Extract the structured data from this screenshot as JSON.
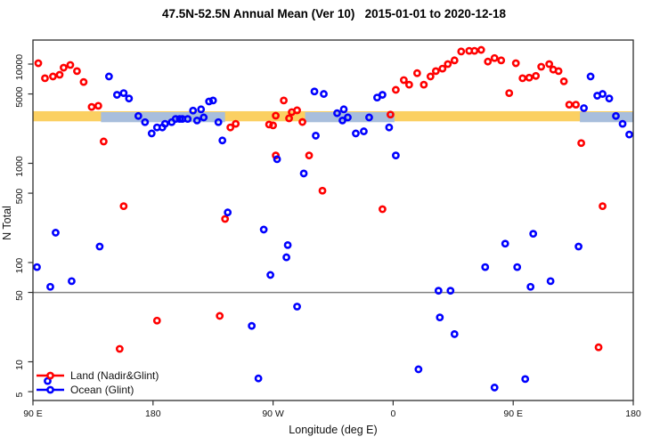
{
  "figure": {
    "background": "#ffffff"
  },
  "chart_data": {
    "type": "scatter",
    "title": "47.5N-52.5N Annual Mean (Ver 10)   2015-01-01 to 2020-12-18",
    "xlabel": "Longitude (deg E)",
    "ylabel": "N Total",
    "x_axis": {
      "range": [
        90,
        540
      ],
      "ticks": [
        90,
        180,
        270,
        360,
        450,
        540
      ],
      "tick_labels": [
        "90 E",
        "180",
        "90 W",
        "0",
        "90 E",
        "180"
      ]
    },
    "y_axis": {
      "scale": "log",
      "range": [
        4.2,
        17500
      ],
      "ticks": [
        5,
        10,
        50,
        100,
        500,
        1000,
        5000,
        10000
      ],
      "tick_labels": [
        "5",
        "10",
        "50",
        "100",
        "500",
        "1000",
        "5000",
        "10000"
      ]
    },
    "grid": "off",
    "reference_line": {
      "y": 50,
      "color": "#808080"
    },
    "bands": {
      "value_range": [
        2650,
        3350
      ],
      "land_color": "#FBD062",
      "ocean_color": "#A8BEDC",
      "land_segments": [
        [
          90,
          540
        ]
      ],
      "ocean_segments": [
        [
          141,
          234
        ],
        [
          294,
          361
        ],
        [
          500,
          540
        ]
      ]
    },
    "legend": {
      "position": "bottom-left"
    },
    "series": [
      {
        "name": "Land (Nadir&Glint)",
        "color": "#FF0000",
        "points": [
          [
            94,
            10200
          ],
          [
            99,
            7200
          ],
          [
            105,
            7500
          ],
          [
            110,
            7800
          ],
          [
            113,
            9200
          ],
          [
            118,
            9800
          ],
          [
            123,
            8500
          ],
          [
            128,
            6600
          ],
          [
            134,
            3700
          ],
          [
            139,
            3800
          ],
          [
            143,
            1660
          ],
          [
            155,
            13.5
          ],
          [
            158,
            370
          ],
          [
            183,
            26
          ],
          [
            230,
            29
          ],
          [
            234,
            275
          ],
          [
            238,
            2300
          ],
          [
            242,
            2500
          ],
          [
            267,
            2460
          ],
          [
            270,
            2410
          ],
          [
            272,
            3020
          ],
          [
            272,
            1200
          ],
          [
            278,
            4300
          ],
          [
            282,
            2840
          ],
          [
            284,
            3280
          ],
          [
            288,
            3420
          ],
          [
            292,
            2610
          ],
          [
            297,
            1200
          ],
          [
            307,
            530
          ],
          [
            352,
            345
          ],
          [
            358,
            3100
          ],
          [
            362,
            5500
          ],
          [
            368,
            6900
          ],
          [
            372,
            6200
          ],
          [
            378,
            8100
          ],
          [
            383,
            6200
          ],
          [
            388,
            7500
          ],
          [
            392,
            8500
          ],
          [
            397,
            9000
          ],
          [
            401,
            10000
          ],
          [
            406,
            10900
          ],
          [
            411,
            13400
          ],
          [
            417,
            13600
          ],
          [
            421,
            13600
          ],
          [
            426,
            13900
          ],
          [
            431,
            10600
          ],
          [
            436,
            11500
          ],
          [
            441,
            10900
          ],
          [
            447,
            5100
          ],
          [
            452,
            10200
          ],
          [
            457,
            7200
          ],
          [
            462,
            7300
          ],
          [
            467,
            7600
          ],
          [
            471,
            9400
          ],
          [
            477,
            10000
          ],
          [
            480,
            8800
          ],
          [
            484,
            8500
          ],
          [
            488,
            6700
          ],
          [
            492,
            3900
          ],
          [
            497,
            3900
          ],
          [
            501,
            1600
          ],
          [
            514,
            14
          ],
          [
            517,
            370
          ]
        ]
      },
      {
        "name": "Ocean (Glint)",
        "color": "#0000FF",
        "points": [
          [
            93,
            90
          ],
          [
            101,
            6.4
          ],
          [
            103,
            57
          ],
          [
            107,
            200
          ],
          [
            119,
            65
          ],
          [
            140,
            145
          ],
          [
            147,
            7500
          ],
          [
            153,
            4900
          ],
          [
            158,
            5100
          ],
          [
            162,
            4500
          ],
          [
            169,
            3000
          ],
          [
            174,
            2600
          ],
          [
            179,
            2000
          ],
          [
            183,
            2300
          ],
          [
            187,
            2300
          ],
          [
            189,
            2500
          ],
          [
            194,
            2600
          ],
          [
            197,
            2800
          ],
          [
            200,
            2800
          ],
          [
            202,
            2800
          ],
          [
            206,
            2800
          ],
          [
            210,
            3400
          ],
          [
            213,
            2700
          ],
          [
            216,
            3500
          ],
          [
            218,
            2900
          ],
          [
            222,
            4200
          ],
          [
            225,
            4300
          ],
          [
            229,
            2600
          ],
          [
            232,
            1700
          ],
          [
            236,
            320
          ],
          [
            254,
            23
          ],
          [
            259,
            6.8
          ],
          [
            263,
            215
          ],
          [
            268,
            75
          ],
          [
            273,
            1100
          ],
          [
            280,
            113
          ],
          [
            281,
            150
          ],
          [
            288,
            36
          ],
          [
            293,
            790
          ],
          [
            301,
            5300
          ],
          [
            302,
            1900
          ],
          [
            308,
            5000
          ],
          [
            318,
            3200
          ],
          [
            322,
            2700
          ],
          [
            323,
            3500
          ],
          [
            326,
            2900
          ],
          [
            332,
            2000
          ],
          [
            338,
            2100
          ],
          [
            342,
            2900
          ],
          [
            348,
            4600
          ],
          [
            352,
            4900
          ],
          [
            357,
            2300
          ],
          [
            362,
            1200
          ],
          [
            379,
            8.4
          ],
          [
            394,
            52
          ],
          [
            395,
            28
          ],
          [
            403,
            52
          ],
          [
            406,
            19
          ],
          [
            429,
            90
          ],
          [
            436,
            5.5
          ],
          [
            444,
            155
          ],
          [
            453,
            90
          ],
          [
            459,
            6.7
          ],
          [
            463,
            57
          ],
          [
            465,
            195
          ],
          [
            478,
            65
          ],
          [
            499,
            145
          ],
          [
            503,
            3600
          ],
          [
            508,
            7500
          ],
          [
            513,
            4800
          ],
          [
            517,
            5000
          ],
          [
            522,
            4500
          ],
          [
            527,
            3000
          ],
          [
            532,
            2500
          ],
          [
            537,
            1950
          ]
        ]
      }
    ]
  }
}
